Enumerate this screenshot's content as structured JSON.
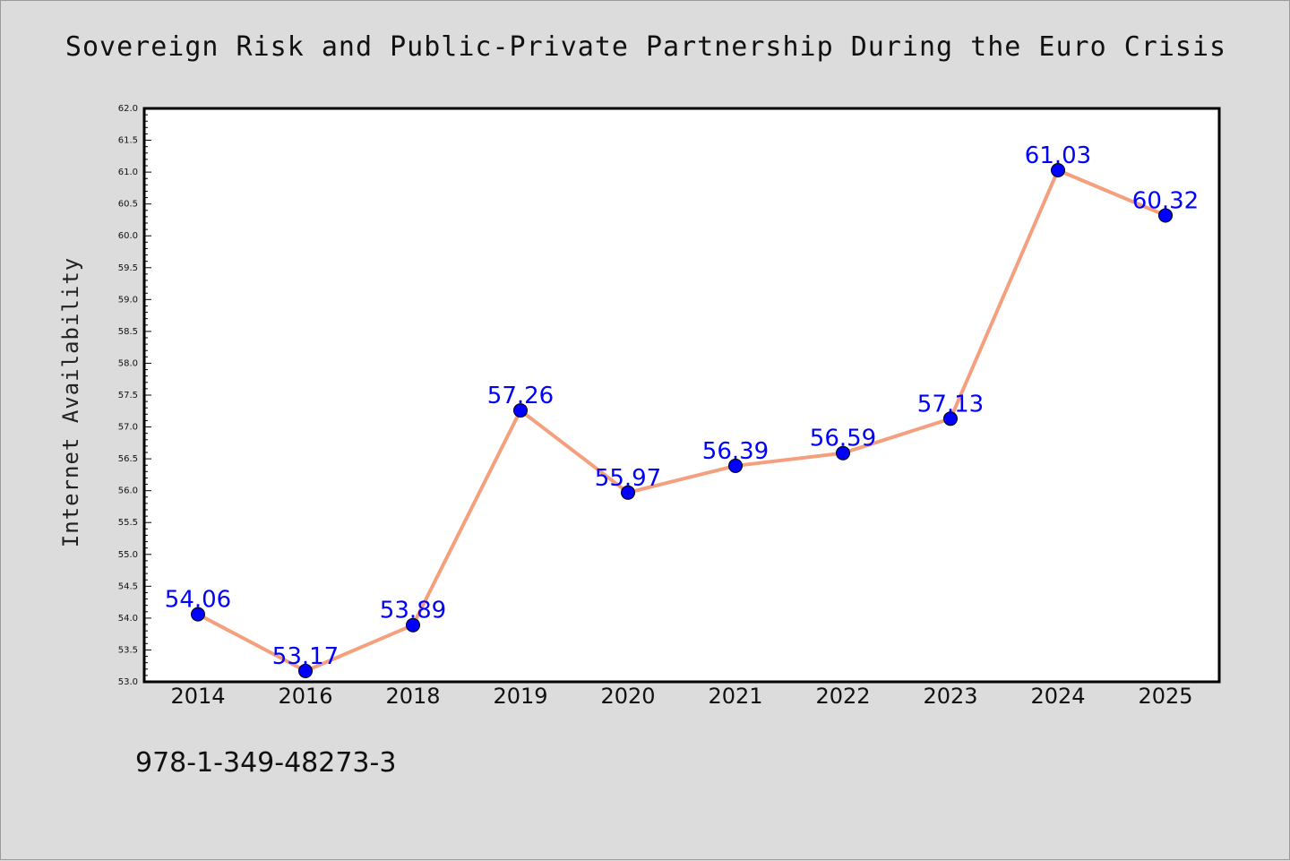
{
  "chart_data": {
    "type": "line",
    "title": "Sovereign Risk and Public-Private Partnership During the Euro Crisis",
    "xlabel": "",
    "ylabel": "Internet Availability",
    "categories": [
      "2014",
      "2016",
      "2018",
      "2019",
      "2020",
      "2021",
      "2022",
      "2023",
      "2024",
      "2025"
    ],
    "series": [
      {
        "values": [
          54.06,
          53.17,
          53.89,
          57.26,
          55.97,
          56.39,
          56.59,
          57.13,
          61.03,
          60.32
        ],
        "line_color": "#f4a07e",
        "marker_color": "#0000ff"
      }
    ],
    "data_labels": [
      "54.06",
      "53.17",
      "53.89",
      "57.26",
      "55.97",
      "56.39",
      "56.59",
      "57.13",
      "61.03",
      "60.32"
    ],
    "ylim": [
      53.0,
      62.0
    ],
    "yticks": [
      "53.0",
      "53.5",
      "54.0",
      "54.5",
      "55.0",
      "55.5",
      "56.0",
      "56.5",
      "57.0",
      "57.5",
      "58.0",
      "58.5",
      "59.0",
      "59.5",
      "60.0",
      "60.5",
      "61.0",
      "61.5",
      "62.0"
    ],
    "grid": false,
    "label_color": "#0000ff"
  },
  "footer": {
    "isbn": "978-1-349-48273-3"
  }
}
